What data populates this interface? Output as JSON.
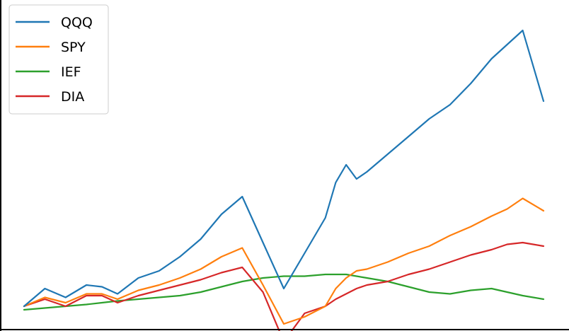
{
  "chart_data": {
    "type": "line",
    "title": "",
    "xlabel": "",
    "ylabel": "",
    "x_ticks_labeled": false,
    "y_ticks_labeled": false,
    "grid": false,
    "legend_position": "top-left",
    "x": [
      0,
      4,
      8,
      12,
      15,
      18,
      22,
      26,
      30,
      34,
      38,
      42,
      46,
      50,
      54,
      58,
      60,
      62,
      64,
      66,
      70,
      74,
      78,
      82,
      86,
      90,
      93,
      96,
      100
    ],
    "ylim": [
      -3,
      83
    ],
    "xlim": [
      0,
      100
    ],
    "series": [
      {
        "name": "QQQ",
        "color": "#1f77b4",
        "values": [
          0.0,
          5.0,
          2.5,
          6.0,
          5.5,
          3.5,
          8.0,
          10.0,
          14.0,
          19.0,
          26.0,
          31.0,
          18.0,
          5.0,
          15.0,
          25.0,
          35.0,
          40.0,
          36.0,
          38.0,
          43.0,
          48.0,
          53.0,
          57.0,
          63.0,
          70.0,
          74.0,
          78.0,
          58.0
        ]
      },
      {
        "name": "SPY",
        "color": "#ff7f0e",
        "values": [
          0.0,
          2.5,
          1.0,
          3.5,
          3.5,
          2.0,
          4.5,
          6.0,
          8.0,
          10.5,
          14.0,
          16.5,
          6.0,
          -5.0,
          -3.0,
          0.0,
          5.0,
          8.0,
          10.0,
          10.5,
          12.5,
          15.0,
          17.0,
          20.0,
          22.5,
          25.5,
          27.5,
          30.5,
          27.0
        ]
      },
      {
        "name": "IEF",
        "color": "#2ca02c",
        "values": [
          -1.0,
          -0.5,
          0.0,
          0.5,
          1.0,
          1.5,
          2.0,
          2.5,
          3.0,
          4.0,
          5.5,
          7.0,
          8.0,
          8.5,
          8.5,
          9.0,
          9.0,
          9.0,
          8.5,
          8.0,
          7.0,
          5.5,
          4.0,
          3.5,
          4.5,
          5.0,
          4.0,
          3.0,
          2.0
        ]
      },
      {
        "name": "DIA",
        "color": "#d62728",
        "values": [
          0.0,
          2.0,
          0.0,
          3.0,
          3.0,
          1.0,
          3.0,
          4.5,
          6.0,
          7.5,
          9.5,
          11.0,
          4.0,
          -10.0,
          -2.0,
          0.0,
          2.0,
          3.5,
          5.0,
          6.0,
          7.0,
          9.0,
          10.5,
          12.5,
          14.5,
          16.0,
          17.5,
          18.0,
          17.0
        ]
      }
    ]
  }
}
